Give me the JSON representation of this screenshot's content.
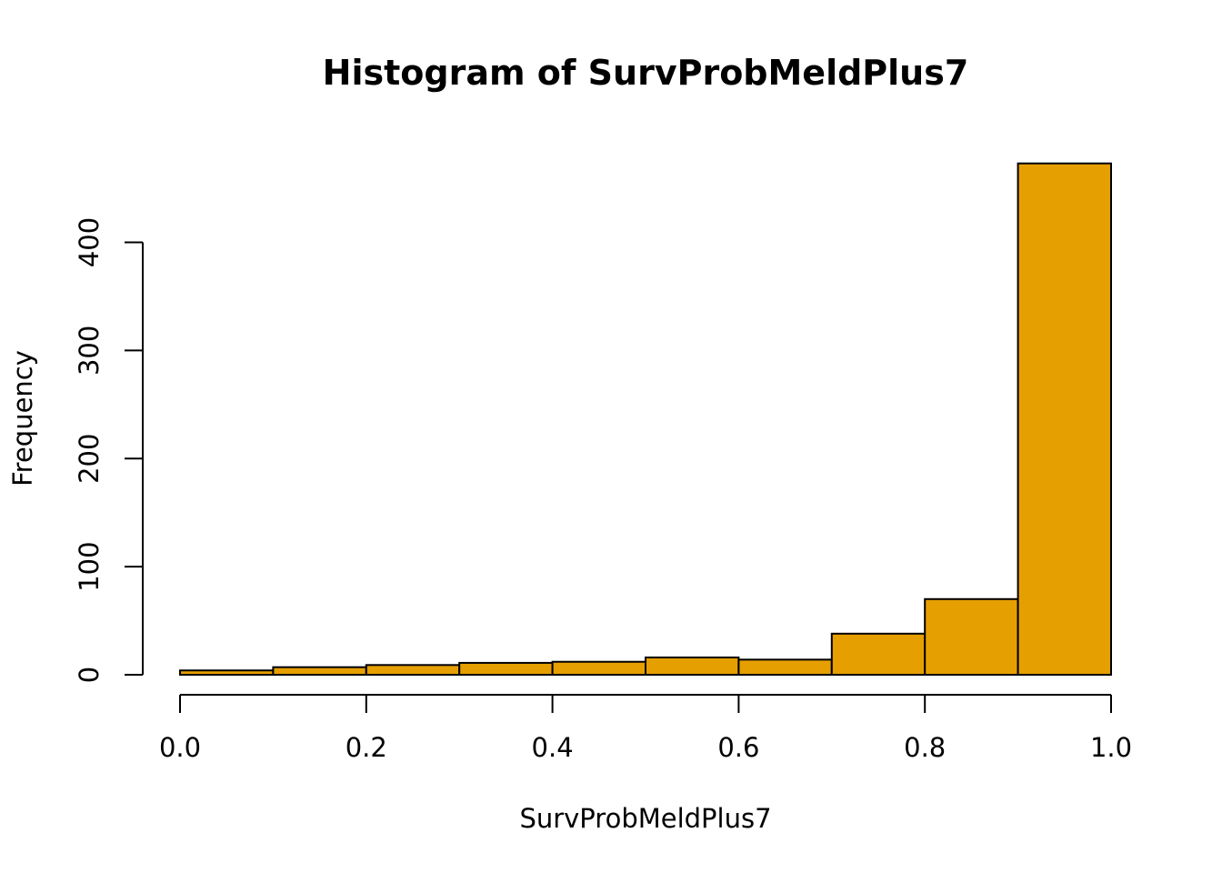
{
  "chart_data": {
    "type": "bar",
    "title": "Histogram of SurvProbMeldPlus7",
    "xlabel": "SurvProbMeldPlus7",
    "ylabel": "Frequency",
    "bins": [
      {
        "start": 0.0,
        "end": 0.1,
        "count": 4
      },
      {
        "start": 0.1,
        "end": 0.2,
        "count": 7
      },
      {
        "start": 0.2,
        "end": 0.3,
        "count": 9
      },
      {
        "start": 0.3,
        "end": 0.4,
        "count": 11
      },
      {
        "start": 0.4,
        "end": 0.5,
        "count": 12
      },
      {
        "start": 0.5,
        "end": 0.6,
        "count": 16
      },
      {
        "start": 0.6,
        "end": 0.7,
        "count": 14
      },
      {
        "start": 0.7,
        "end": 0.8,
        "count": 38
      },
      {
        "start": 0.8,
        "end": 0.9,
        "count": 70
      },
      {
        "start": 0.9,
        "end": 1.0,
        "count": 473
      }
    ],
    "xlim": [
      0.0,
      1.0
    ],
    "ylim": [
      0,
      473
    ],
    "x_ticks": [
      "0.0",
      "0.2",
      "0.4",
      "0.6",
      "0.8",
      "1.0"
    ],
    "y_ticks": [
      "0",
      "100",
      "200",
      "300",
      "400"
    ],
    "bar_color": "#E69F00",
    "grid": false,
    "legend": "none"
  }
}
